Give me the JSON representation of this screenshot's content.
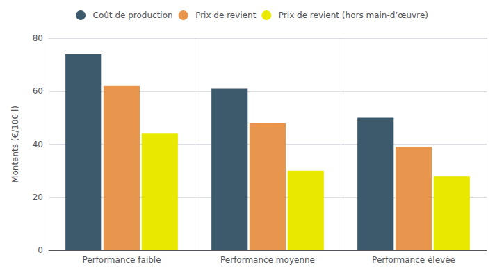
{
  "chart_data": {
    "type": "bar",
    "ylabel": "Montants (€/100 l)",
    "categories": [
      "Performance faible",
      "Performance moyenne",
      "Performance élevée"
    ],
    "series": [
      {
        "name": "Coût de production",
        "color": "#3d5a6c",
        "values": [
          74,
          61,
          50
        ]
      },
      {
        "name": "Prix de revient",
        "color": "#e8964d",
        "values": [
          62,
          48,
          39
        ]
      },
      {
        "name": "Prix de revient (hors main-d’œuvre)",
        "color": "#e8e800",
        "values": [
          44,
          30,
          28
        ]
      }
    ],
    "ylim": [
      0,
      80
    ],
    "yticks": [
      0,
      20,
      40,
      60,
      80
    ],
    "grid": true,
    "legend": "top"
  }
}
